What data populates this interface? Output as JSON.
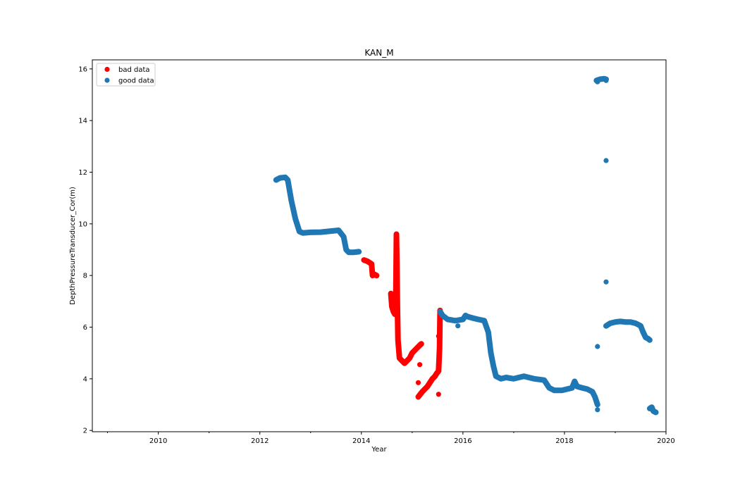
{
  "chart_data": {
    "type": "scatter",
    "title": "KAN_M",
    "xlabel": "Year",
    "ylabel": "DepthPressureTransducer_Cor(m)",
    "xlim": [
      2008.7,
      2020.0
    ],
    "ylim": [
      1.95,
      16.35
    ],
    "xticks": [
      2010,
      2012,
      2014,
      2016,
      2018,
      2020
    ],
    "xtick_labels": [
      "2010",
      "2012",
      "2014",
      "2016",
      "2018",
      "2020"
    ],
    "yticks": [
      2,
      4,
      6,
      8,
      10,
      12,
      14,
      16
    ],
    "ytick_labels": [
      "2",
      "4",
      "6",
      "8",
      "10",
      "12",
      "14",
      "16"
    ],
    "grid": false,
    "legend_position": "top-left",
    "series": [
      {
        "name": "bad data",
        "color": "#ff0000",
        "segments": [
          [
            [
              2014.05,
              8.6
            ],
            [
              2014.12,
              8.55
            ],
            [
              2014.2,
              8.45
            ],
            [
              2014.22,
              8.0
            ],
            [
              2014.25,
              8.05
            ],
            [
              2014.3,
              8.0
            ]
          ],
          [
            [
              2014.58,
              7.3
            ],
            [
              2014.6,
              6.8
            ],
            [
              2014.63,
              6.6
            ],
            [
              2014.66,
              6.5
            ],
            [
              2014.68,
              7.5
            ],
            [
              2014.69,
              9.6
            ],
            [
              2014.7,
              8.5
            ],
            [
              2014.71,
              6.8
            ],
            [
              2014.72,
              5.5
            ],
            [
              2014.75,
              4.8
            ],
            [
              2014.8,
              4.7
            ],
            [
              2014.85,
              4.6
            ],
            [
              2014.9,
              4.7
            ],
            [
              2014.95,
              4.8
            ],
            [
              2015.0,
              5.0
            ],
            [
              2015.05,
              5.1
            ],
            [
              2015.1,
              5.2
            ],
            [
              2015.15,
              5.3
            ],
            [
              2015.18,
              5.35
            ]
          ],
          [
            [
              2015.12,
              3.3
            ],
            [
              2015.16,
              3.4
            ],
            [
              2015.2,
              3.5
            ],
            [
              2015.25,
              3.6
            ],
            [
              2015.3,
              3.7
            ],
            [
              2015.35,
              3.85
            ],
            [
              2015.4,
              4.0
            ],
            [
              2015.45,
              4.1
            ],
            [
              2015.48,
              4.2
            ],
            [
              2015.52,
              4.3
            ],
            [
              2015.54,
              5.2
            ],
            [
              2015.55,
              6.65
            ]
          ]
        ],
        "points": [
          [
            2015.15,
            4.55
          ],
          [
            2015.12,
            3.85
          ],
          [
            2015.52,
            5.65
          ],
          [
            2015.52,
            3.4
          ]
        ]
      },
      {
        "name": "good data",
        "color": "#1f77b4",
        "segments": [
          [
            [
              2012.32,
              11.7
            ],
            [
              2012.4,
              11.78
            ],
            [
              2012.5,
              11.8
            ],
            [
              2012.55,
              11.7
            ],
            [
              2012.62,
              10.9
            ],
            [
              2012.7,
              10.2
            ],
            [
              2012.78,
              9.7
            ],
            [
              2012.85,
              9.65
            ],
            [
              2013.0,
              9.67
            ],
            [
              2013.2,
              9.68
            ],
            [
              2013.4,
              9.72
            ],
            [
              2013.55,
              9.75
            ],
            [
              2013.65,
              9.5
            ],
            [
              2013.7,
              9.0
            ],
            [
              2013.75,
              8.9
            ],
            [
              2013.85,
              8.9
            ],
            [
              2013.95,
              8.92
            ]
          ],
          [
            [
              2015.55,
              6.6
            ],
            [
              2015.6,
              6.45
            ],
            [
              2015.7,
              6.3
            ],
            [
              2015.85,
              6.25
            ],
            [
              2016.0,
              6.3
            ],
            [
              2016.05,
              6.45
            ],
            [
              2016.1,
              6.4
            ],
            [
              2016.2,
              6.35
            ],
            [
              2016.3,
              6.3
            ],
            [
              2016.42,
              6.25
            ],
            [
              2016.5,
              5.8
            ],
            [
              2016.55,
              5.0
            ],
            [
              2016.6,
              4.5
            ],
            [
              2016.65,
              4.1
            ],
            [
              2016.75,
              4.0
            ],
            [
              2016.85,
              4.05
            ],
            [
              2017.0,
              4.0
            ],
            [
              2017.2,
              4.1
            ],
            [
              2017.4,
              4.0
            ],
            [
              2017.6,
              3.95
            ],
            [
              2017.7,
              3.65
            ],
            [
              2017.8,
              3.55
            ],
            [
              2017.95,
              3.55
            ],
            [
              2018.05,
              3.6
            ],
            [
              2018.15,
              3.65
            ],
            [
              2018.2,
              3.9
            ],
            [
              2018.25,
              3.7
            ],
            [
              2018.35,
              3.65
            ],
            [
              2018.45,
              3.6
            ],
            [
              2018.55,
              3.5
            ],
            [
              2018.6,
              3.3
            ],
            [
              2018.65,
              3.0
            ]
          ],
          [
            [
              2018.63,
              15.55
            ],
            [
              2018.7,
              15.6
            ],
            [
              2018.78,
              15.62
            ],
            [
              2018.82,
              15.6
            ]
          ],
          [
            [
              2018.82,
              6.05
            ],
            [
              2018.9,
              6.15
            ],
            [
              2019.0,
              6.2
            ],
            [
              2019.1,
              6.22
            ],
            [
              2019.2,
              6.2
            ],
            [
              2019.3,
              6.2
            ],
            [
              2019.4,
              6.15
            ],
            [
              2019.5,
              6.05
            ],
            [
              2019.55,
              5.8
            ],
            [
              2019.6,
              5.6
            ],
            [
              2019.65,
              5.55
            ],
            [
              2019.68,
              5.5
            ]
          ],
          [
            [
              2019.68,
              2.85
            ],
            [
              2019.72,
              2.9
            ],
            [
              2019.75,
              2.75
            ],
            [
              2019.8,
              2.7
            ]
          ]
        ],
        "points": [
          [
            2015.9,
            6.05
          ],
          [
            2018.65,
            2.8
          ],
          [
            2018.65,
            5.25
          ],
          [
            2018.82,
            12.45
          ],
          [
            2018.82,
            7.75
          ],
          [
            2018.65,
            15.5
          ],
          [
            2018.82,
            15.55
          ]
        ]
      }
    ]
  }
}
